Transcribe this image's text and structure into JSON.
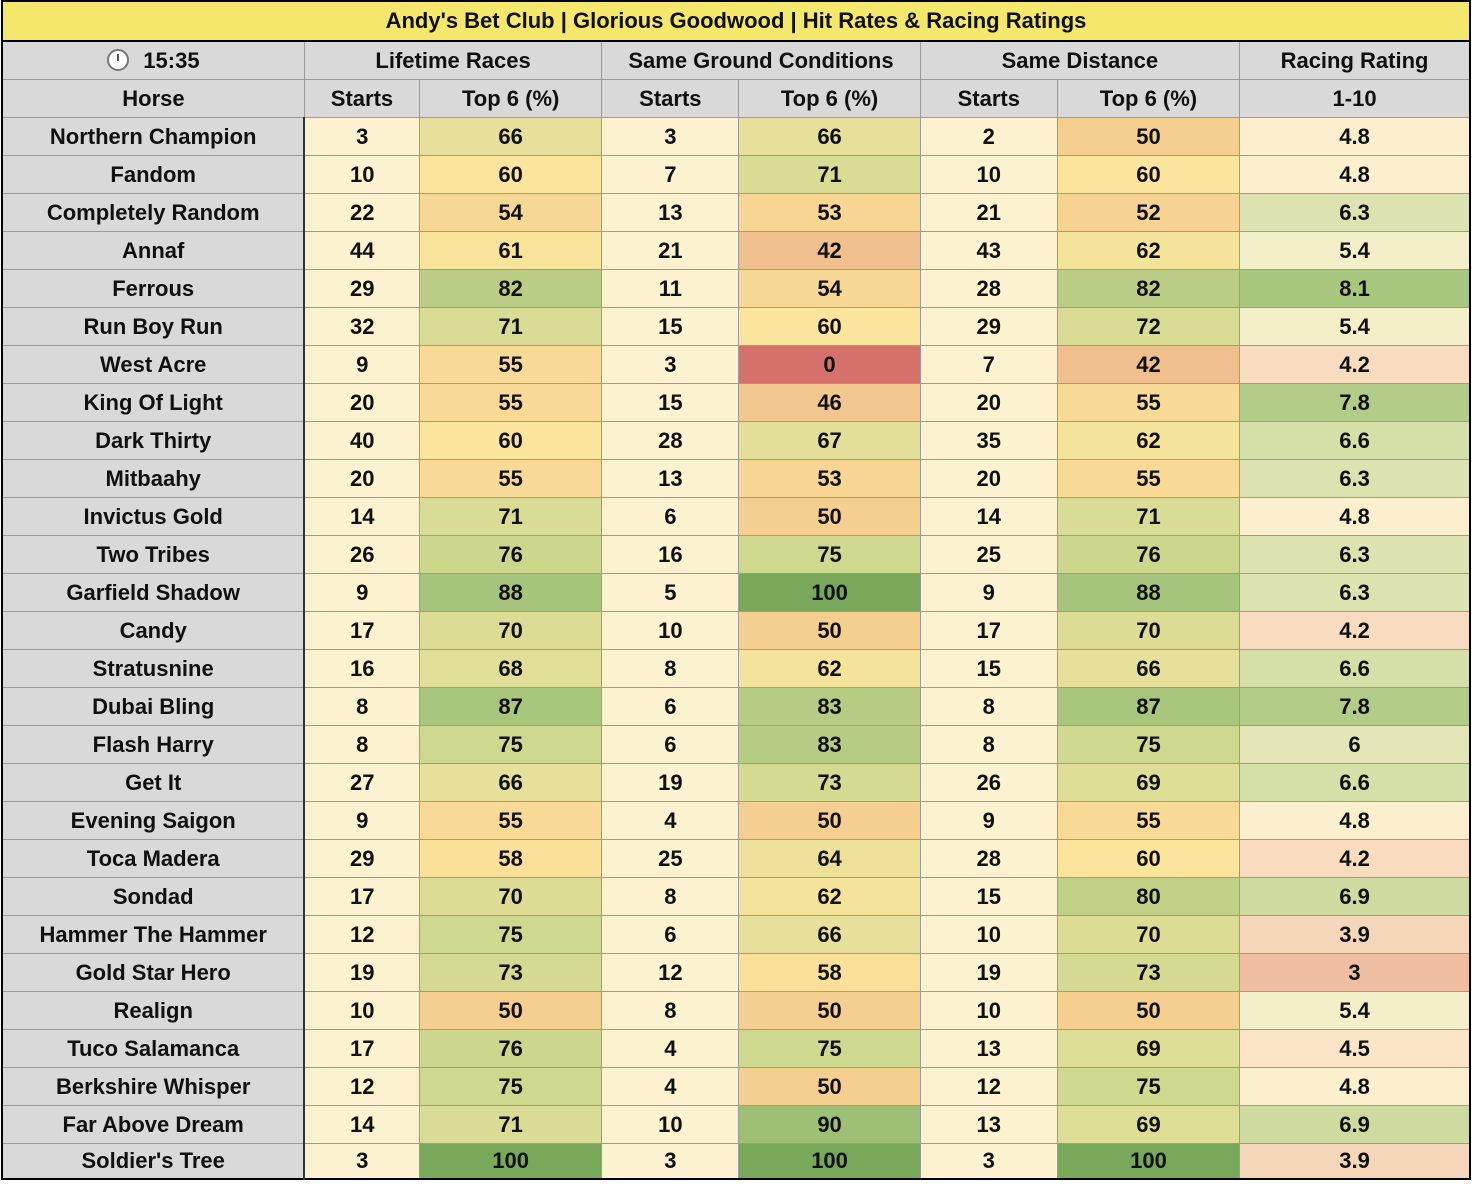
{
  "title": "Andy's Bet Club | Glorious Goodwood | Hit Rates & Racing Ratings",
  "time": "15:35",
  "groups": [
    "Lifetime Races",
    "Same Ground Conditions",
    "Same Distance",
    "Racing Rating"
  ],
  "columns": [
    "Horse",
    "Starts",
    "Top 6 (%)",
    "Starts",
    "Top 6 (%)",
    "Starts",
    "Top 6 (%)",
    "1-10"
  ],
  "rows": [
    [
      "Northern Champion",
      3,
      66,
      3,
      66,
      2,
      50,
      4.8
    ],
    [
      "Fandom",
      10,
      60,
      7,
      71,
      10,
      60,
      4.8
    ],
    [
      "Completely Random",
      22,
      54,
      13,
      53,
      21,
      52,
      6.3
    ],
    [
      "Annaf",
      44,
      61,
      21,
      42,
      43,
      62,
      5.4
    ],
    [
      "Ferrous",
      29,
      82,
      11,
      54,
      28,
      82,
      8.1
    ],
    [
      "Run Boy Run",
      32,
      71,
      15,
      60,
      29,
      72,
      5.4
    ],
    [
      "West Acre",
      9,
      55,
      3,
      0,
      7,
      42,
      4.2
    ],
    [
      "King Of Light",
      20,
      55,
      15,
      46,
      20,
      55,
      7.8
    ],
    [
      "Dark Thirty",
      40,
      60,
      28,
      67,
      35,
      62,
      6.6
    ],
    [
      "Mitbaahy",
      20,
      55,
      13,
      53,
      20,
      55,
      6.3
    ],
    [
      "Invictus Gold",
      14,
      71,
      6,
      50,
      14,
      71,
      4.8
    ],
    [
      "Two Tribes",
      26,
      76,
      16,
      75,
      25,
      76,
      6.3
    ],
    [
      "Garfield Shadow",
      9,
      88,
      5,
      100,
      9,
      88,
      6.3
    ],
    [
      "Candy",
      17,
      70,
      10,
      50,
      17,
      70,
      4.2
    ],
    [
      "Stratusnine",
      16,
      68,
      8,
      62,
      15,
      66,
      6.6
    ],
    [
      "Dubai Bling",
      8,
      87,
      6,
      83,
      8,
      87,
      7.8
    ],
    [
      "Flash Harry",
      8,
      75,
      6,
      83,
      8,
      75,
      6
    ],
    [
      "Get It",
      27,
      66,
      19,
      73,
      26,
      69,
      6.6
    ],
    [
      "Evening Saigon",
      9,
      55,
      4,
      50,
      9,
      55,
      4.8
    ],
    [
      "Toca Madera",
      29,
      58,
      25,
      64,
      28,
      60,
      4.2
    ],
    [
      "Sondad",
      17,
      70,
      8,
      62,
      15,
      80,
      6.9
    ],
    [
      "Hammer The Hammer",
      12,
      75,
      6,
      66,
      10,
      70,
      3.9
    ],
    [
      "Gold Star Hero",
      19,
      73,
      12,
      58,
      19,
      73,
      3
    ],
    [
      "Realign",
      10,
      50,
      8,
      50,
      10,
      50,
      5.4
    ],
    [
      "Tuco Salamanca",
      17,
      76,
      4,
      75,
      13,
      69,
      4.5
    ],
    [
      "Berkshire Whisper",
      12,
      75,
      4,
      50,
      12,
      75,
      4.8
    ],
    [
      "Far Above Dream",
      14,
      71,
      10,
      90,
      13,
      69,
      6.9
    ],
    [
      "Soldier's Tree",
      3,
      100,
      3,
      100,
      3,
      100,
      3.9
    ]
  ]
}
